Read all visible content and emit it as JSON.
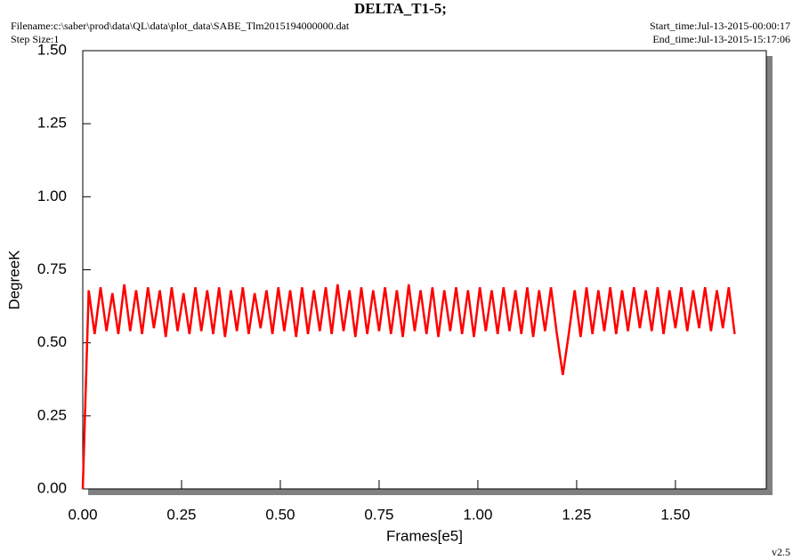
{
  "chart_data": {
    "type": "line",
    "title": "DELTA_T1-5;",
    "filename": "Filename:c:\\saber\\prod\\data\\QL\\data\\plot_data\\SABE_Tlm2015194000000.dat",
    "step_size": "Step Size:1",
    "start_time": "Start_time:Jul-13-2015-00:00:17",
    "end_time": "End_time:Jul-13-2015-15:17:06",
    "version": "v2.5",
    "x_label": "Frames[e5]",
    "y_label": "DegreeK",
    "color": "#ff0000",
    "xlim": [
      0,
      1.73
    ],
    "ylim": [
      0,
      1.5
    ],
    "xticks": [
      {
        "value": 0,
        "label": "0.00"
      },
      {
        "value": 0.25,
        "label": "0.25"
      },
      {
        "value": 0.5,
        "label": "0.50"
      },
      {
        "value": 0.75,
        "label": "0.75"
      },
      {
        "value": 1,
        "label": "1.00"
      },
      {
        "value": 1.25,
        "label": "1.25"
      },
      {
        "value": 1.5,
        "label": "1.50"
      }
    ],
    "yticks": [
      {
        "value": 0,
        "label": "0.00"
      },
      {
        "value": 0.25,
        "label": "0.25"
      },
      {
        "value": 0.5,
        "label": "0.50"
      },
      {
        "value": 0.75,
        "label": "0.75"
      },
      {
        "value": 1,
        "label": "1.00"
      },
      {
        "value": 1.25,
        "label": "1.25"
      },
      {
        "value": 1.5,
        "label": "1.50"
      }
    ],
    "x": [
      0,
      0.015,
      0.03,
      0.045,
      0.06,
      0.075,
      0.09,
      0.105,
      0.12,
      0.135,
      0.15,
      0.165,
      0.18,
      0.195,
      0.21,
      0.225,
      0.24,
      0.255,
      0.27,
      0.285,
      0.3,
      0.315,
      0.33,
      0.345,
      0.36,
      0.375,
      0.39,
      0.405,
      0.42,
      0.435,
      0.45,
      0.465,
      0.48,
      0.495,
      0.51,
      0.525,
      0.54,
      0.555,
      0.57,
      0.585,
      0.6,
      0.615,
      0.63,
      0.645,
      0.66,
      0.675,
      0.69,
      0.705,
      0.72,
      0.735,
      0.75,
      0.765,
      0.78,
      0.795,
      0.81,
      0.825,
      0.84,
      0.855,
      0.87,
      0.885,
      0.9,
      0.915,
      0.93,
      0.945,
      0.96,
      0.975,
      0.99,
      1.005,
      1.02,
      1.035,
      1.05,
      1.065,
      1.08,
      1.095,
      1.11,
      1.125,
      1.14,
      1.155,
      1.17,
      1.185,
      1.2,
      1.215,
      1.23,
      1.245,
      1.26,
      1.275,
      1.29,
      1.305,
      1.32,
      1.335,
      1.35,
      1.365,
      1.38,
      1.395,
      1.41,
      1.425,
      1.44,
      1.455,
      1.47,
      1.485,
      1.5,
      1.515,
      1.53,
      1.545,
      1.56,
      1.575,
      1.59,
      1.605,
      1.62,
      1.635,
      1.65
    ],
    "values": [
      0,
      0.68,
      0.53,
      0.69,
      0.54,
      0.67,
      0.53,
      0.7,
      0.54,
      0.68,
      0.53,
      0.69,
      0.55,
      0.68,
      0.52,
      0.69,
      0.54,
      0.67,
      0.53,
      0.69,
      0.54,
      0.68,
      0.53,
      0.69,
      0.52,
      0.68,
      0.54,
      0.69,
      0.53,
      0.67,
      0.55,
      0.68,
      0.53,
      0.69,
      0.54,
      0.68,
      0.52,
      0.69,
      0.53,
      0.68,
      0.54,
      0.69,
      0.53,
      0.7,
      0.54,
      0.68,
      0.52,
      0.69,
      0.53,
      0.68,
      0.54,
      0.69,
      0.53,
      0.68,
      0.52,
      0.7,
      0.54,
      0.68,
      0.53,
      0.69,
      0.52,
      0.68,
      0.54,
      0.69,
      0.53,
      0.68,
      0.52,
      0.69,
      0.54,
      0.68,
      0.53,
      0.69,
      0.54,
      0.68,
      0.53,
      0.69,
      0.52,
      0.68,
      0.54,
      0.69,
      0.53,
      0.39,
      0.53,
      0.68,
      0.52,
      0.69,
      0.53,
      0.68,
      0.54,
      0.69,
      0.53,
      0.68,
      0.54,
      0.69,
      0.55,
      0.68,
      0.54,
      0.69,
      0.53,
      0.68,
      0.55,
      0.69,
      0.54,
      0.68,
      0.55,
      0.69,
      0.54,
      0.68,
      0.55,
      0.69,
      0.53
    ]
  }
}
